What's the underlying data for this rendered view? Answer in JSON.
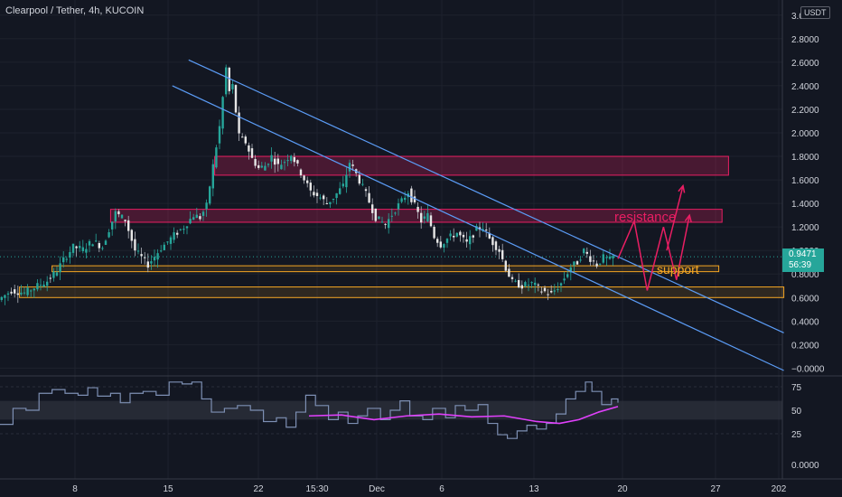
{
  "header": {
    "symbol": "Clearpool / Tether, 4h, KUCOIN",
    "currency": "USDT"
  },
  "last_price": {
    "value": "0.9471",
    "countdown": "56:39"
  },
  "annotations": {
    "resistance": "resistance",
    "support": "support"
  },
  "colors": {
    "background": "#131722",
    "up": "#26a69a",
    "down": "#ef5350",
    "wick_up": "#26a69a",
    "channel": "#5b9cf6",
    "resistance_zone": "#e91e63",
    "support_zone": "#f5a623",
    "rsi_line": "#7d8fb3",
    "rsi_ma": "#e040fb",
    "projection": "#e91e63"
  },
  "chart_data": [
    {
      "type": "candlestick",
      "name": "price",
      "y_ticks": [
        "3.0000",
        "2.8000",
        "2.6000",
        "2.4000",
        "2.2000",
        "2.0000",
        "1.8000",
        "1.6000",
        "1.4000",
        "1.2000",
        "1.0000",
        "0.8000",
        "0.6000",
        "0.4000",
        "0.2000",
        "−0.0000"
      ],
      "x_ticks": [
        "8",
        "15",
        "22",
        "15:30",
        "Dec",
        "6",
        "13",
        "20",
        "27",
        "202"
      ],
      "ylim": [
        -0.05,
        3.05
      ],
      "price_path": [
        [
          0,
          0.58
        ],
        [
          4,
          0.66
        ],
        [
          8,
          0.64
        ],
        [
          12,
          0.7
        ],
        [
          15,
          0.74
        ],
        [
          18,
          0.83
        ],
        [
          20,
          0.92
        ],
        [
          23,
          1.03
        ],
        [
          26,
          1.01
        ],
        [
          29,
          1.08
        ],
        [
          32,
          1.03
        ],
        [
          34,
          1.18
        ],
        [
          36,
          1.32
        ],
        [
          39,
          1.26
        ],
        [
          42,
          1.0
        ],
        [
          46,
          0.88
        ],
        [
          50,
          1.02
        ],
        [
          54,
          1.13
        ],
        [
          57,
          1.2
        ],
        [
          60,
          1.3
        ],
        [
          62,
          1.28
        ],
        [
          64,
          1.38
        ],
        [
          66,
          1.72
        ],
        [
          68,
          2.05
        ],
        [
          69,
          2.3
        ],
        [
          70,
          2.55
        ],
        [
          71,
          2.35
        ],
        [
          72,
          2.4
        ],
        [
          73,
          2.18
        ],
        [
          74,
          1.97
        ],
        [
          76,
          1.92
        ],
        [
          78,
          1.78
        ],
        [
          80,
          1.7
        ],
        [
          82,
          1.72
        ],
        [
          84,
          1.8
        ],
        [
          86,
          1.72
        ],
        [
          88,
          1.76
        ],
        [
          90,
          1.82
        ],
        [
          93,
          1.66
        ],
        [
          96,
          1.5
        ],
        [
          99,
          1.45
        ],
        [
          101,
          1.4
        ],
        [
          103,
          1.45
        ],
        [
          106,
          1.55
        ],
        [
          108,
          1.75
        ],
        [
          110,
          1.65
        ],
        [
          113,
          1.48
        ],
        [
          116,
          1.28
        ],
        [
          119,
          1.22
        ],
        [
          122,
          1.35
        ],
        [
          124,
          1.42
        ],
        [
          126,
          1.5
        ],
        [
          128,
          1.38
        ],
        [
          130,
          1.25
        ],
        [
          132,
          1.3
        ],
        [
          134,
          1.12
        ],
        [
          136,
          1.05
        ],
        [
          138,
          1.1
        ],
        [
          141,
          1.15
        ],
        [
          144,
          1.06
        ],
        [
          147,
          1.18
        ],
        [
          149,
          1.2
        ],
        [
          151,
          1.1
        ],
        [
          154,
          1.0
        ],
        [
          156,
          0.85
        ],
        [
          158,
          0.73
        ],
        [
          161,
          0.7
        ],
        [
          164,
          0.72
        ],
        [
          167,
          0.66
        ],
        [
          170,
          0.63
        ],
        [
          173,
          0.72
        ],
        [
          176,
          0.86
        ],
        [
          178,
          0.9
        ],
        [
          180,
          1.0
        ],
        [
          182,
          0.93
        ],
        [
          184,
          0.88
        ],
        [
          186,
          0.94
        ],
        [
          188,
          0.92
        ],
        [
          189,
          0.9471
        ]
      ],
      "x_range_bars": [
        0,
        240
      ],
      "resistance_zones": [
        {
          "label": "",
          "x": [
            66,
            224
          ],
          "y": [
            1.64,
            1.8
          ]
        },
        {
          "label": "resistance",
          "x": [
            34,
            222
          ],
          "y": [
            1.24,
            1.35
          ]
        }
      ],
      "support_zones": [
        {
          "label": "support",
          "x": [
            16,
            221
          ],
          "y": [
            0.82,
            0.87
          ]
        },
        {
          "label": "",
          "x": [
            6,
            241
          ],
          "y": [
            0.6,
            0.69
          ]
        }
      ],
      "channel_lines": [
        {
          "from": [
            58,
            2.62
          ],
          "to": [
            241,
            0.3
          ]
        },
        {
          "from": [
            53,
            2.4
          ],
          "to": [
            241,
            -0.02
          ]
        }
      ],
      "projection_path": [
        [
          190,
          0.93
        ],
        [
          195,
          1.25
        ],
        [
          199,
          0.66
        ],
        [
          204,
          1.2
        ],
        [
          208,
          0.75
        ],
        [
          212,
          1.3
        ],
        [
          205,
          1.0
        ],
        [
          210,
          1.55
        ]
      ]
    },
    {
      "type": "line",
      "name": "rsi",
      "y_ticks": [
        "75",
        "50",
        "25"
      ],
      "ylim": [
        0,
        85
      ],
      "band": [
        40,
        60
      ],
      "rsi_path": [
        [
          0,
          35
        ],
        [
          4,
          52
        ],
        [
          8,
          50
        ],
        [
          12,
          68
        ],
        [
          16,
          72
        ],
        [
          20,
          68
        ],
        [
          24,
          66
        ],
        [
          27,
          74
        ],
        [
          30,
          65
        ],
        [
          34,
          68
        ],
        [
          37,
          58
        ],
        [
          40,
          68
        ],
        [
          44,
          70
        ],
        [
          48,
          66
        ],
        [
          52,
          80
        ],
        [
          56,
          78
        ],
        [
          59,
          80
        ],
        [
          62,
          62
        ],
        [
          65,
          48
        ],
        [
          69,
          52
        ],
        [
          73,
          55
        ],
        [
          77,
          50
        ],
        [
          81,
          38
        ],
        [
          85,
          42
        ],
        [
          88,
          32
        ],
        [
          91,
          48
        ],
        [
          94,
          66
        ],
        [
          97,
          55
        ],
        [
          101,
          40
        ],
        [
          104,
          48
        ],
        [
          107,
          36
        ],
        [
          110,
          44
        ],
        [
          113,
          52
        ],
        [
          117,
          40
        ],
        [
          120,
          50
        ],
        [
          123,
          60
        ],
        [
          126,
          44
        ],
        [
          130,
          40
        ],
        [
          133,
          52
        ],
        [
          137,
          42
        ],
        [
          140,
          55
        ],
        [
          143,
          50
        ],
        [
          147,
          56
        ],
        [
          150,
          36
        ],
        [
          153,
          24
        ],
        [
          156,
          20
        ],
        [
          159,
          28
        ],
        [
          162,
          34
        ],
        [
          165,
          30
        ],
        [
          168,
          36
        ],
        [
          171,
          46
        ],
        [
          174,
          62
        ],
        [
          177,
          70
        ],
        [
          180,
          80
        ],
        [
          182,
          70
        ],
        [
          185,
          56
        ],
        [
          188,
          62
        ],
        [
          190,
          58
        ]
      ],
      "ma_path": [
        [
          95,
          44
        ],
        [
          105,
          45
        ],
        [
          115,
          40
        ],
        [
          125,
          44
        ],
        [
          135,
          46
        ],
        [
          145,
          43
        ],
        [
          155,
          44
        ],
        [
          165,
          38
        ],
        [
          172,
          36
        ],
        [
          178,
          40
        ],
        [
          184,
          48
        ],
        [
          190,
          54
        ]
      ]
    }
  ],
  "bottom_tick": "0.0000"
}
